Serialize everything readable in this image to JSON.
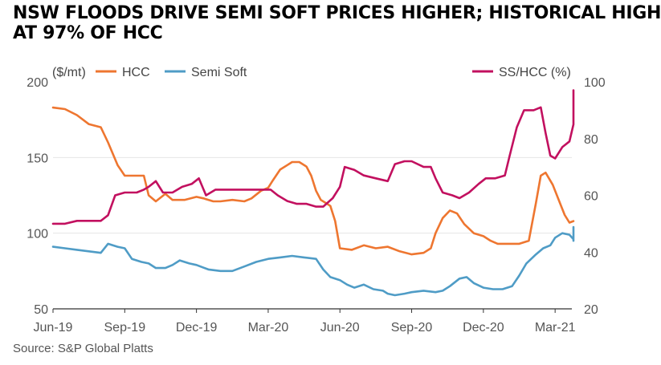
{
  "title": {
    "line1": "NSW FLOODS DRIVE SEMI SOFT PRICES HIGHER; HISTORICAL HIGH",
    "line2": "AT 97% OF HCC"
  },
  "source": "Source: S&P Global Platts",
  "colors": {
    "hcc": "#ee7630",
    "semi_soft": "#4f9cc6",
    "ss_hcc": "#c2105f",
    "axis": "#333333"
  },
  "chart_data": {
    "type": "line",
    "title": "NSW FLOODS DRIVE SEMI SOFT PRICES HIGHER; HISTORICAL HIGH AT 97% OF HCC",
    "y_left_label": "($/mt)",
    "y_right_label": "",
    "y_left_range": [
      50,
      200
    ],
    "y_right_range": [
      20,
      100
    ],
    "y_left_ticks": [
      "50",
      "100",
      "150",
      "200"
    ],
    "y_right_ticks": [
      "20",
      "40",
      "60",
      "80",
      "100"
    ],
    "x_tick_labels": [
      "Jun-19",
      "Sep-19",
      "Dec-19",
      "Mar-20",
      "Jun-20",
      "Sep-20",
      "Dec-20",
      "Mar-21"
    ],
    "x_range_months": [
      0,
      21.7
    ],
    "legend": [
      "HCC",
      "Semi Soft",
      "SS/HCC (%)"
    ],
    "series": [
      {
        "name": "HCC",
        "axis": "left",
        "points": [
          [
            0,
            183
          ],
          [
            0.5,
            182
          ],
          [
            1,
            178
          ],
          [
            1.5,
            172
          ],
          [
            2,
            170
          ],
          [
            2.3,
            160
          ],
          [
            2.7,
            145
          ],
          [
            3,
            138
          ],
          [
            3.5,
            138
          ],
          [
            3.8,
            138
          ],
          [
            4,
            125
          ],
          [
            4.3,
            121
          ],
          [
            4.7,
            126
          ],
          [
            5,
            122
          ],
          [
            5.5,
            122
          ],
          [
            6,
            124
          ],
          [
            6.3,
            123
          ],
          [
            6.7,
            121
          ],
          [
            7,
            121
          ],
          [
            7.5,
            122
          ],
          [
            8,
            121
          ],
          [
            8.3,
            123
          ],
          [
            8.7,
            128
          ],
          [
            9,
            130
          ],
          [
            9.2,
            135
          ],
          [
            9.5,
            142
          ],
          [
            9.8,
            145
          ],
          [
            10,
            147
          ],
          [
            10.3,
            147
          ],
          [
            10.6,
            144
          ],
          [
            10.8,
            138
          ],
          [
            11,
            128
          ],
          [
            11.2,
            122
          ],
          [
            11.4,
            120
          ],
          [
            11.6,
            118
          ],
          [
            11.8,
            108
          ],
          [
            12,
            90
          ],
          [
            12.5,
            89
          ],
          [
            13,
            92
          ],
          [
            13.5,
            90
          ],
          [
            14,
            91
          ],
          [
            14.5,
            88
          ],
          [
            15,
            86
          ],
          [
            15.5,
            87
          ],
          [
            15.8,
            90
          ],
          [
            16,
            100
          ],
          [
            16.3,
            110
          ],
          [
            16.6,
            115
          ],
          [
            16.9,
            113
          ],
          [
            17.2,
            106
          ],
          [
            17.6,
            100
          ],
          [
            18,
            98
          ],
          [
            18.3,
            95
          ],
          [
            18.6,
            93
          ],
          [
            19,
            93
          ],
          [
            19.5,
            93
          ],
          [
            19.9,
            95
          ],
          [
            20.2,
            120
          ],
          [
            20.4,
            138
          ],
          [
            20.6,
            140
          ],
          [
            20.9,
            132
          ],
          [
            21.2,
            120
          ],
          [
            21.4,
            112
          ],
          [
            21.6,
            107
          ],
          [
            22,
            108
          ],
          [
            22.4,
            108
          ]
        ]
      },
      {
        "name": "Semi Soft",
        "axis": "left",
        "points": [
          [
            0,
            91
          ],
          [
            0.5,
            90
          ],
          [
            1,
            89
          ],
          [
            1.5,
            88
          ],
          [
            2,
            87
          ],
          [
            2.3,
            93
          ],
          [
            2.7,
            91
          ],
          [
            3,
            90
          ],
          [
            3.3,
            83
          ],
          [
            3.7,
            81
          ],
          [
            4,
            80
          ],
          [
            4.3,
            77
          ],
          [
            4.7,
            77
          ],
          [
            5,
            79
          ],
          [
            5.3,
            82
          ],
          [
            5.7,
            80
          ],
          [
            6,
            79
          ],
          [
            6.5,
            76
          ],
          [
            7,
            75
          ],
          [
            7.5,
            75
          ],
          [
            8,
            78
          ],
          [
            8.5,
            81
          ],
          [
            9,
            83
          ],
          [
            9.5,
            84
          ],
          [
            10,
            85
          ],
          [
            10.5,
            84
          ],
          [
            11,
            83
          ],
          [
            11.3,
            76
          ],
          [
            11.6,
            71
          ],
          [
            12,
            69
          ],
          [
            12.3,
            66
          ],
          [
            12.6,
            64
          ],
          [
            13,
            66
          ],
          [
            13.4,
            63
          ],
          [
            13.8,
            62
          ],
          [
            14,
            60
          ],
          [
            14.3,
            59
          ],
          [
            14.7,
            60
          ],
          [
            15,
            61
          ],
          [
            15.5,
            62
          ],
          [
            16,
            61
          ],
          [
            16.3,
            62
          ],
          [
            16.6,
            65
          ],
          [
            17,
            70
          ],
          [
            17.3,
            71
          ],
          [
            17.6,
            67
          ],
          [
            18,
            64
          ],
          [
            18.4,
            63
          ],
          [
            18.8,
            63
          ],
          [
            19.2,
            65
          ],
          [
            19.5,
            72
          ],
          [
            19.8,
            80
          ],
          [
            20.2,
            86
          ],
          [
            20.5,
            90
          ],
          [
            20.8,
            92
          ],
          [
            21,
            97
          ],
          [
            21.3,
            100
          ],
          [
            21.6,
            99
          ],
          [
            21.9,
            96
          ],
          [
            22.1,
            95
          ],
          [
            22.4,
            104
          ]
        ]
      },
      {
        "name": "SS/HCC (%)",
        "axis": "right",
        "points": [
          [
            0,
            50
          ],
          [
            0.5,
            50
          ],
          [
            1,
            51
          ],
          [
            1.5,
            51
          ],
          [
            2,
            51
          ],
          [
            2.3,
            53
          ],
          [
            2.6,
            60
          ],
          [
            3,
            61
          ],
          [
            3.5,
            61
          ],
          [
            3.8,
            62
          ],
          [
            4,
            63
          ],
          [
            4.3,
            65
          ],
          [
            4.6,
            61
          ],
          [
            5,
            61
          ],
          [
            5.4,
            63
          ],
          [
            5.8,
            64
          ],
          [
            6.1,
            66
          ],
          [
            6.4,
            60
          ],
          [
            6.8,
            62
          ],
          [
            7.2,
            62
          ],
          [
            7.6,
            62
          ],
          [
            8,
            62
          ],
          [
            8.4,
            62
          ],
          [
            8.8,
            62
          ],
          [
            9.1,
            62
          ],
          [
            9.4,
            60
          ],
          [
            9.8,
            58
          ],
          [
            10.2,
            57
          ],
          [
            10.6,
            57
          ],
          [
            11,
            56
          ],
          [
            11.3,
            56
          ],
          [
            11.7,
            59
          ],
          [
            12,
            63
          ],
          [
            12.2,
            70
          ],
          [
            12.6,
            69
          ],
          [
            13,
            67
          ],
          [
            13.5,
            66
          ],
          [
            14,
            65
          ],
          [
            14.3,
            71
          ],
          [
            14.7,
            72
          ],
          [
            15,
            72
          ],
          [
            15.5,
            70
          ],
          [
            15.8,
            70
          ],
          [
            16,
            66
          ],
          [
            16.3,
            61
          ],
          [
            16.7,
            60
          ],
          [
            17,
            59
          ],
          [
            17.4,
            61
          ],
          [
            17.8,
            64
          ],
          [
            18.1,
            66
          ],
          [
            18.5,
            66
          ],
          [
            18.9,
            67
          ],
          [
            19.1,
            74
          ],
          [
            19.4,
            84
          ],
          [
            19.7,
            90
          ],
          [
            20.1,
            90
          ],
          [
            20.4,
            91
          ],
          [
            20.6,
            82
          ],
          [
            20.8,
            74
          ],
          [
            21,
            73
          ],
          [
            21.3,
            77
          ],
          [
            21.6,
            79
          ],
          [
            21.9,
            85
          ],
          [
            22.1,
            93
          ],
          [
            22.3,
            97
          ],
          [
            22.6,
            97
          ]
        ]
      }
    ]
  }
}
